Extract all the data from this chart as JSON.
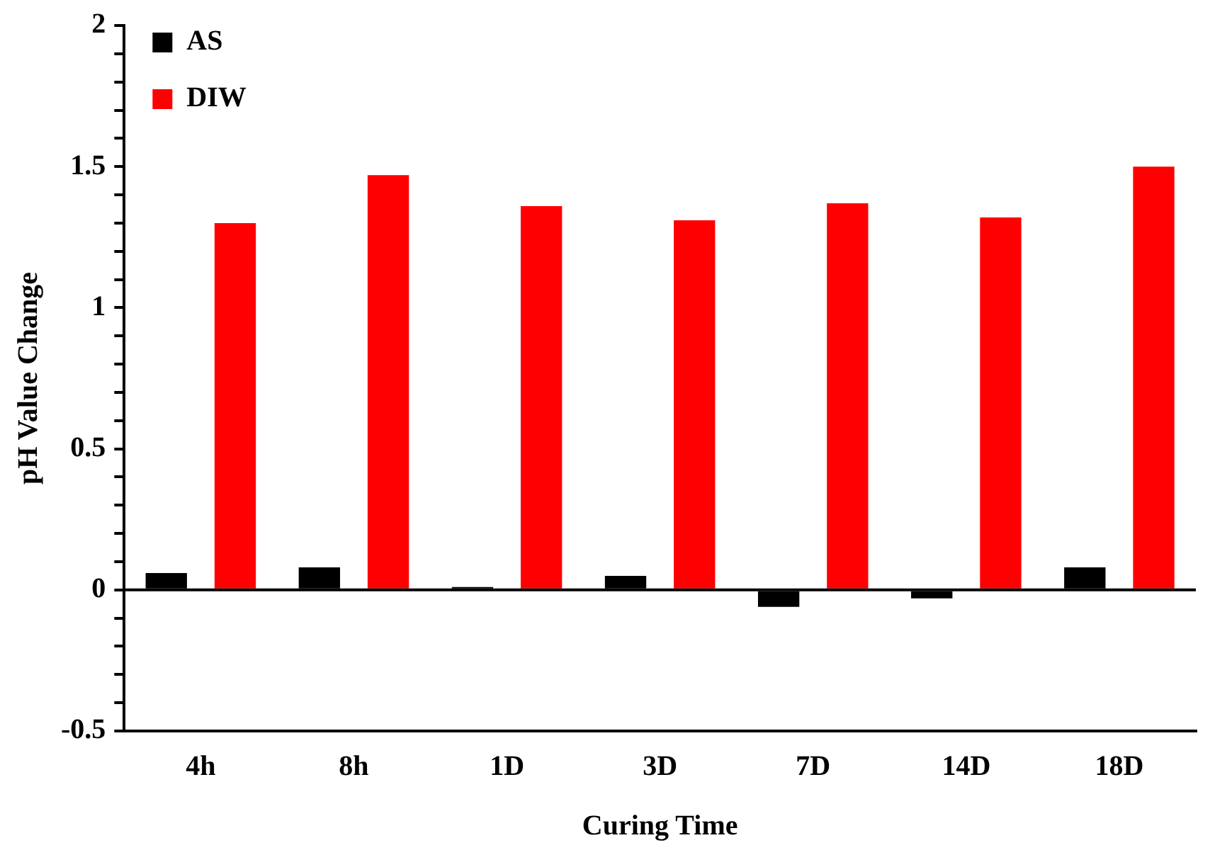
{
  "chart_data": {
    "type": "bar",
    "xlabel": "Curing Time",
    "ylabel": "pH Value Change",
    "categories": [
      "4h",
      "8h",
      "1D",
      "3D",
      "7D",
      "14D",
      "18D"
    ],
    "series": [
      {
        "name": "AS",
        "color": "#000000",
        "values": [
          0.06,
          0.08,
          0.01,
          0.05,
          -0.06,
          -0.03,
          0.08
        ]
      },
      {
        "name": "DIW",
        "color": "#ff0000",
        "values": [
          1.3,
          1.47,
          1.36,
          1.31,
          1.37,
          1.32,
          1.5
        ]
      }
    ],
    "ylim": [
      -0.5,
      2
    ],
    "yticks": [
      {
        "value": -0.5,
        "label": "-0.5"
      },
      {
        "value": -0.4,
        "label": null
      },
      {
        "value": -0.3,
        "label": null
      },
      {
        "value": -0.2,
        "label": null
      },
      {
        "value": -0.1,
        "label": null
      },
      0,
      {
        "value": 0.1,
        "label": null
      },
      {
        "value": 0.2,
        "label": null
      },
      {
        "value": 0.3,
        "label": null
      },
      {
        "value": 0.4,
        "label": null
      },
      {
        "value": 0.5,
        "label": "0.5"
      },
      {
        "value": 0.6,
        "label": null
      },
      {
        "value": 0.7,
        "label": null
      },
      {
        "value": 0.8,
        "label": null
      },
      {
        "value": 0.9,
        "label": null
      },
      1,
      {
        "value": 1.1,
        "label": null
      },
      {
        "value": 1.2,
        "label": null
      },
      {
        "value": 1.3,
        "label": null
      },
      {
        "value": 1.4,
        "label": null
      },
      {
        "value": 1.5,
        "label": "1.5"
      },
      {
        "value": 1.6,
        "label": null
      },
      {
        "value": 1.7,
        "label": null
      },
      {
        "value": 1.8,
        "label": null
      },
      {
        "value": 1.9,
        "label": null
      },
      2
    ],
    "ref_lines": [
      {
        "axis": "y",
        "value": 0,
        "color": "#000000"
      }
    ],
    "grid": false,
    "legend": "top left"
  }
}
